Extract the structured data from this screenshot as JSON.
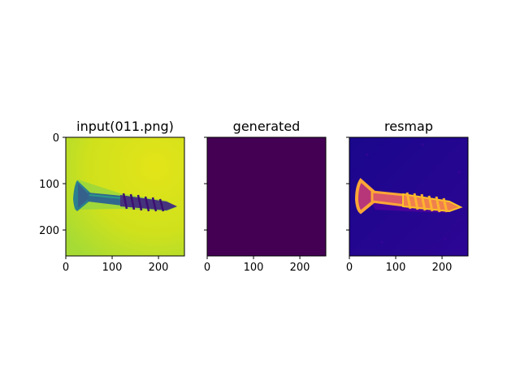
{
  "figure": {
    "panels": [
      {
        "title": "input(011.png)",
        "colormap": "viridis",
        "image_description_name": "screw-image",
        "xticks": [
          0,
          100,
          200
        ],
        "yticks": [
          0,
          100,
          200
        ],
        "show_ytick_labels": true
      },
      {
        "title": "generated",
        "colormap": "viridis",
        "fill_color": "#440154",
        "xticks": [
          0,
          100,
          200
        ],
        "yticks": [
          0,
          100,
          200
        ],
        "show_ytick_labels": false
      },
      {
        "title": "resmap",
        "colormap": "plasma",
        "xticks": [
          0,
          100,
          200
        ],
        "yticks": [
          0,
          100,
          200
        ],
        "show_ytick_labels": false
      }
    ],
    "image_size": [
      256,
      256
    ]
  },
  "chart_data": {
    "type": "heatmap",
    "images": [
      {
        "title": "input(011.png)",
        "extent": [
          0,
          256,
          256,
          0
        ],
        "background": "yellow-green",
        "object": "screw"
      },
      {
        "title": "generated",
        "extent": [
          0,
          256,
          256,
          0
        ],
        "uniform": true
      },
      {
        "title": "resmap",
        "extent": [
          0,
          256,
          256,
          0
        ],
        "background": "dark-blue",
        "object": "screw (bright)"
      }
    ],
    "xlim": [
      0,
      256
    ],
    "ylim": [
      256,
      0
    ]
  },
  "colors": {
    "viridis_low": "#440154",
    "viridis_mid": "#21918c",
    "viridis_high": "#dde318",
    "plasma_low": "#0d0887",
    "plasma_high": "#fca636"
  }
}
